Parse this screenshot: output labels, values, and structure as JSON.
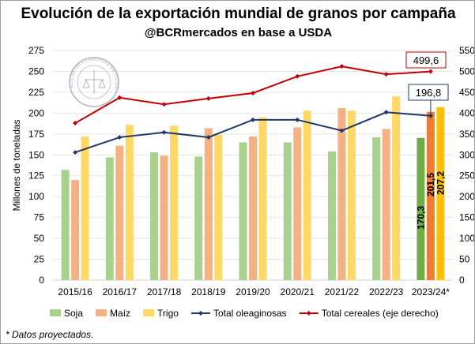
{
  "chart_data": {
    "type": "bar",
    "title": "Evolución de la exportación mundial de granos por campaña",
    "subtitle": "@BCRmercados en base a USDA",
    "ylabel": "Millones de toneladas",
    "ylim": [
      0,
      275
    ],
    "y2lim": [
      0,
      550
    ],
    "yticks": [
      0,
      25,
      50,
      75,
      100,
      125,
      150,
      175,
      200,
      225,
      250,
      275
    ],
    "y2ticks": [
      0,
      50,
      100,
      150,
      200,
      250,
      300,
      350,
      400,
      450,
      500,
      550
    ],
    "grid": true,
    "legend": "bottom",
    "categories": [
      "2015/16",
      "2016/17",
      "2017/18",
      "2018/19",
      "2019/20",
      "2020/21",
      "2021/22",
      "2022/23",
      "2023/24*"
    ],
    "series": [
      {
        "name": "Soja",
        "type": "bar",
        "axis": "left",
        "color": "#a9d18e",
        "highlight": "#70ad47",
        "values": [
          132,
          147,
          153,
          148,
          165,
          165,
          154,
          171,
          170.3
        ]
      },
      {
        "name": "Maíz",
        "type": "bar",
        "axis": "left",
        "color": "#f4b183",
        "highlight": "#ed7d31",
        "values": [
          120,
          161,
          149,
          182,
          172,
          183,
          206,
          181,
          201.5
        ]
      },
      {
        "name": "Trigo",
        "type": "bar",
        "axis": "left",
        "color": "#ffd966",
        "highlight": "#ffc000",
        "values": [
          172,
          186,
          185,
          174,
          195,
          203,
          203,
          220,
          207.2
        ]
      },
      {
        "name": "Total oleaginosas",
        "type": "line",
        "axis": "left",
        "color": "#1f3864",
        "values": [
          153,
          171,
          177,
          171,
          192,
          192,
          179,
          201,
          196.8
        ]
      },
      {
        "name": "Total cereales (eje derecho)",
        "type": "line",
        "axis": "right",
        "color": "#c00000",
        "values": [
          376,
          437,
          421,
          435,
          448,
          488,
          512,
          493,
          499.6
        ]
      }
    ],
    "data_labels": {
      "soja_last": "170,3",
      "maiz_last": "201,5",
      "trigo_last": "207,2",
      "oleaginosas_last": "196,8",
      "cereales_last": "499,6"
    },
    "logo_text": "BOLSA DE COMERCIO DE ROSARIO"
  },
  "footnote": "* Datos proyectados."
}
